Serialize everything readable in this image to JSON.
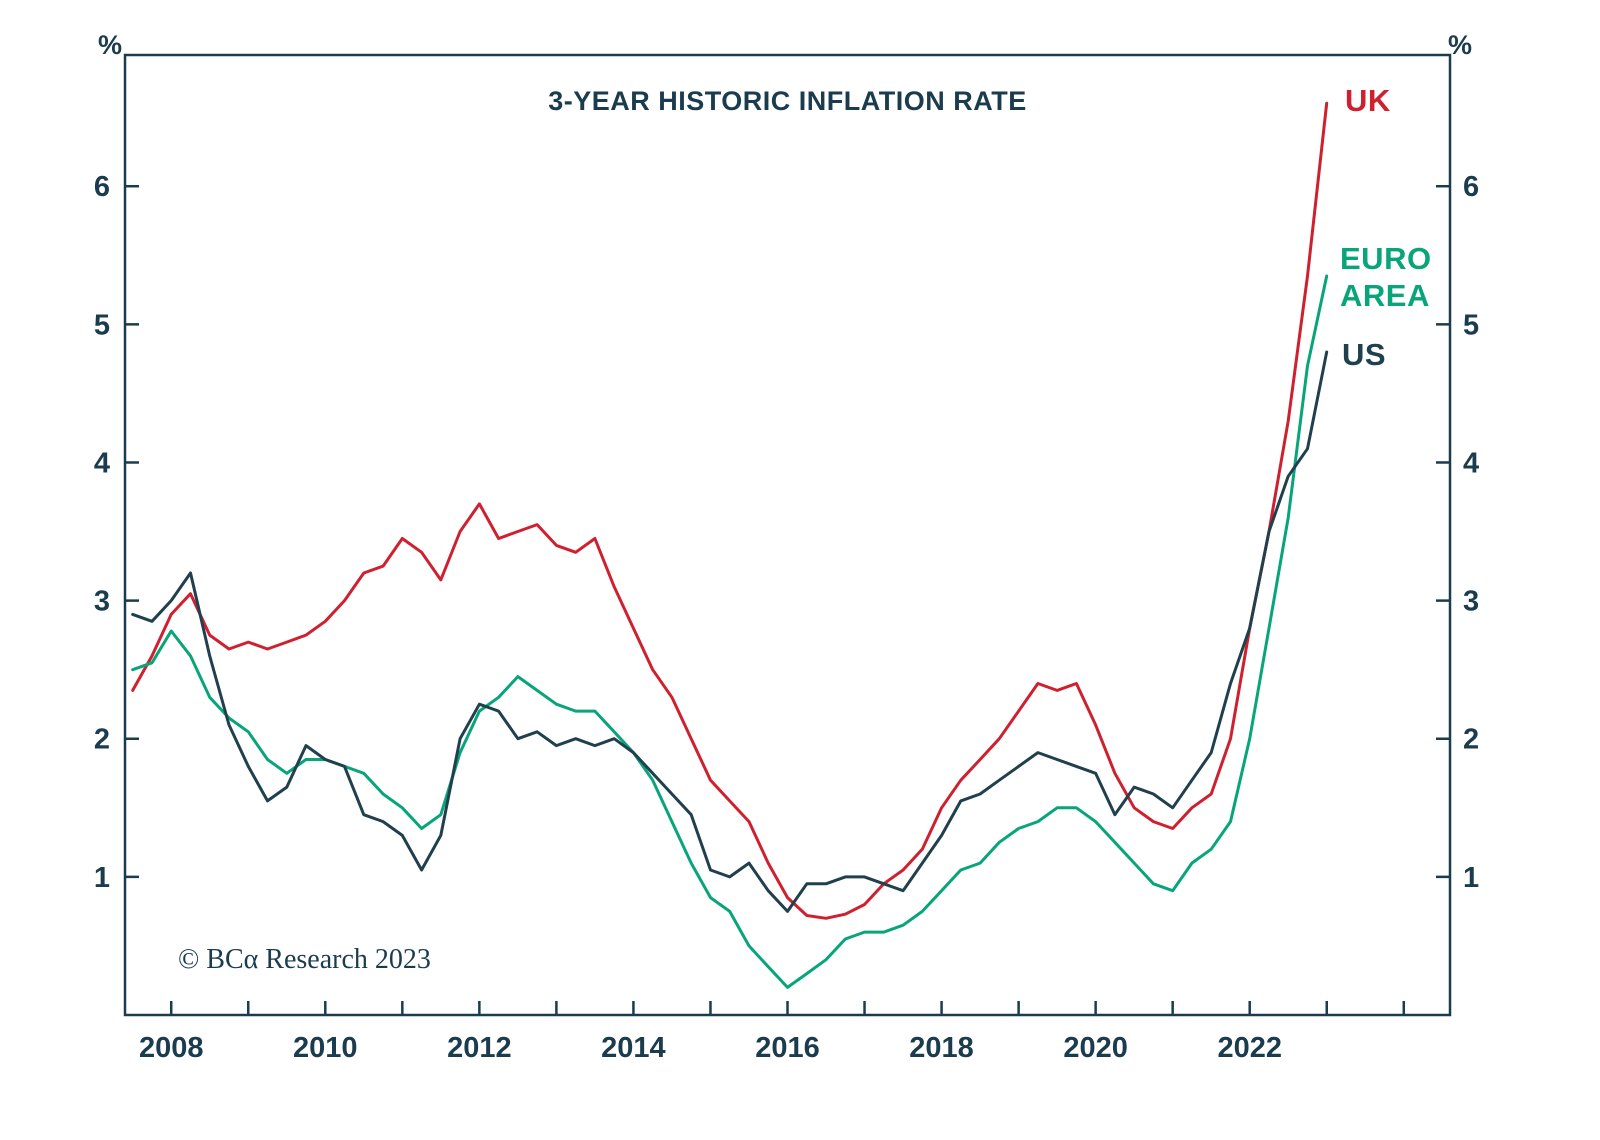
{
  "page": {
    "background": "#ffffff"
  },
  "footer": {
    "copyright": "© BCα Research 2023"
  },
  "chart_data": {
    "type": "line",
    "title": "3-YEAR HISTORIC INFLATION RATE",
    "y_unit": "%",
    "axis_color": "#1b3c4e",
    "grid": false,
    "legend_position": "right-inside",
    "xlim": [
      2007.4,
      2024.6
    ],
    "ylim": [
      0,
      6.95
    ],
    "y_ticks": [
      1,
      2,
      3,
      4,
      5,
      6
    ],
    "x_ticks": [
      2008,
      2010,
      2012,
      2014,
      2016,
      2018,
      2020,
      2022
    ],
    "x_minor_ticks": [
      2008,
      2009,
      2010,
      2011,
      2012,
      2013,
      2014,
      2015,
      2016,
      2017,
      2018,
      2019,
      2020,
      2021,
      2022,
      2023,
      2024
    ],
    "x": [
      2007.5,
      2007.75,
      2008,
      2008.25,
      2008.5,
      2008.75,
      2009,
      2009.25,
      2009.5,
      2009.75,
      2010,
      2010.25,
      2010.5,
      2010.75,
      2011,
      2011.25,
      2011.5,
      2011.75,
      2012,
      2012.25,
      2012.5,
      2012.75,
      2013,
      2013.25,
      2013.5,
      2013.75,
      2014,
      2014.25,
      2014.5,
      2014.75,
      2015,
      2015.25,
      2015.5,
      2015.75,
      2016,
      2016.25,
      2016.5,
      2016.75,
      2017,
      2017.25,
      2017.5,
      2017.75,
      2018,
      2018.25,
      2018.5,
      2018.75,
      2019,
      2019.25,
      2019.5,
      2019.75,
      2020,
      2020.25,
      2020.5,
      2020.75,
      2021,
      2021.25,
      2021.5,
      2021.75,
      2022,
      2022.25,
      2022.5,
      2022.75,
      2023
    ],
    "series": [
      {
        "name": "UK",
        "color": "#cf2030",
        "values": [
          2.35,
          2.6,
          2.9,
          3.05,
          2.75,
          2.65,
          2.7,
          2.65,
          2.7,
          2.75,
          2.85,
          3.0,
          3.2,
          3.25,
          3.45,
          3.35,
          3.15,
          3.5,
          3.7,
          3.45,
          3.5,
          3.55,
          3.4,
          3.35,
          3.45,
          3.1,
          2.8,
          2.5,
          2.3,
          2.0,
          1.7,
          1.55,
          1.4,
          1.1,
          0.85,
          0.72,
          0.7,
          0.73,
          0.8,
          0.95,
          1.05,
          1.2,
          1.5,
          1.7,
          1.85,
          2.0,
          2.2,
          2.4,
          2.35,
          2.4,
          2.1,
          1.75,
          1.5,
          1.4,
          1.35,
          1.5,
          1.6,
          2.0,
          2.8,
          3.5,
          4.3,
          5.35,
          6.6
        ]
      },
      {
        "name": "EURO AREA",
        "color": "#09a57a",
        "values": [
          2.5,
          2.55,
          2.78,
          2.6,
          2.3,
          2.15,
          2.05,
          1.85,
          1.75,
          1.85,
          1.85,
          1.8,
          1.75,
          1.6,
          1.5,
          1.35,
          1.45,
          1.9,
          2.2,
          2.3,
          2.45,
          2.35,
          2.25,
          2.2,
          2.2,
          2.05,
          1.9,
          1.7,
          1.4,
          1.1,
          0.85,
          0.75,
          0.5,
          0.35,
          0.2,
          0.3,
          0.4,
          0.55,
          0.6,
          0.6,
          0.65,
          0.75,
          0.9,
          1.05,
          1.1,
          1.25,
          1.35,
          1.4,
          1.5,
          1.5,
          1.4,
          1.25,
          1.1,
          0.95,
          0.9,
          1.1,
          1.2,
          1.4,
          2.0,
          2.8,
          3.6,
          4.7,
          5.35
        ]
      },
      {
        "name": "US",
        "color": "#20404e",
        "values": [
          2.9,
          2.85,
          3.0,
          3.2,
          2.6,
          2.1,
          1.8,
          1.55,
          1.65,
          1.95,
          1.85,
          1.8,
          1.45,
          1.4,
          1.3,
          1.05,
          1.3,
          2.0,
          2.25,
          2.2,
          2.0,
          2.05,
          1.95,
          2.0,
          1.95,
          2.0,
          1.9,
          1.75,
          1.6,
          1.45,
          1.05,
          1.0,
          1.1,
          0.9,
          0.75,
          0.95,
          0.95,
          1.0,
          1.0,
          0.95,
          0.9,
          1.1,
          1.3,
          1.55,
          1.6,
          1.7,
          1.8,
          1.9,
          1.85,
          1.8,
          1.75,
          1.45,
          1.65,
          1.6,
          1.5,
          1.7,
          1.9,
          2.4,
          2.8,
          3.5,
          3.9,
          4.1,
          4.8
        ]
      }
    ]
  }
}
